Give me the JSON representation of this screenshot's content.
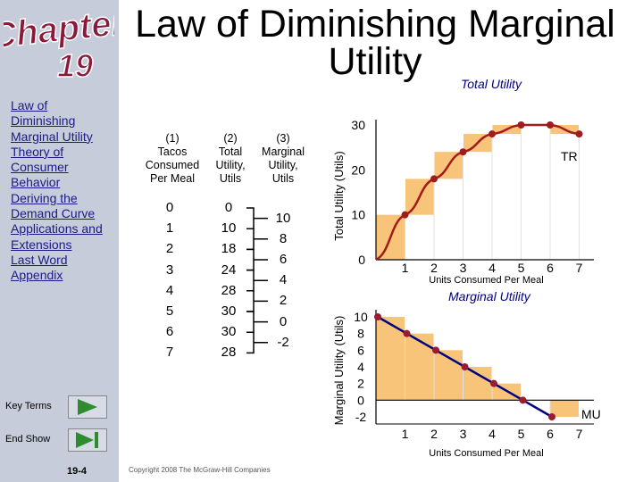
{
  "logo": {
    "word": "Chapter",
    "number": "19"
  },
  "sidebar": {
    "items": [
      {
        "label": "Law of Diminishing Marginal Utility"
      },
      {
        "label": "Theory of Consumer Behavior"
      },
      {
        "label": "Deriving the Demand Curve"
      },
      {
        "label": "Applications and Extensions"
      },
      {
        "label": "Last Word"
      },
      {
        "label": "Appendix"
      }
    ],
    "key_terms_label": "Key Terms",
    "end_show_label": "End Show",
    "page_number": "19-4"
  },
  "slide": {
    "title": "Law of Diminishing Marginal Utility",
    "copyright": "Copyright 2008 The McGraw-Hill Companies"
  },
  "table": {
    "col1_header": [
      "(1)",
      "Tacos",
      "Consumed",
      "Per Meal"
    ],
    "col2_header": [
      "(2)",
      "Total",
      "Utility,",
      "Utils"
    ],
    "col3_header": [
      "(3)",
      "Marginal",
      "Utility,",
      "Utils"
    ],
    "tacos": [
      "0",
      "1",
      "2",
      "3",
      "4",
      "5",
      "6",
      "7"
    ],
    "total_utility": [
      "0",
      "10",
      "18",
      "24",
      "28",
      "30",
      "30",
      "28"
    ],
    "marginal_utility": [
      "10",
      "8",
      "6",
      "4",
      "2",
      "0",
      "-2"
    ]
  },
  "chart_data": [
    {
      "type": "line",
      "title": "Total Utility",
      "ylabel": "Total Utility (Utils)",
      "xlabel": "Units Consumed Per Meal",
      "x": [
        0,
        1,
        2,
        3,
        4,
        5,
        6,
        7
      ],
      "x_ticks": [
        "1",
        "2",
        "3",
        "4",
        "5",
        "6",
        "7"
      ],
      "y_ticks": [
        "0",
        "10",
        "20",
        "30"
      ],
      "series": [
        {
          "name": "TR",
          "values": [
            0,
            10,
            18,
            24,
            28,
            30,
            30,
            28
          ]
        }
      ],
      "ylim": [
        0,
        30
      ],
      "curve_color": "#a01c1c",
      "bar_color": "#f7c47a"
    },
    {
      "type": "line",
      "title": "Marginal Utility",
      "ylabel": "Marginal Utility (Utils)",
      "xlabel": "Units Consumed Per Meal",
      "x": [
        1,
        2,
        3,
        4,
        5,
        6,
        7
      ],
      "x_ticks": [
        "1",
        "2",
        "3",
        "4",
        "5",
        "6",
        "7"
      ],
      "y_ticks": [
        "10",
        "8",
        "6",
        "4",
        "2",
        "0",
        "-2"
      ],
      "series": [
        {
          "name": "MU",
          "values": [
            10,
            8,
            6,
            4,
            2,
            0,
            -2
          ]
        }
      ],
      "ylim": [
        -2,
        10
      ],
      "curve_color": "#000080",
      "bar_color": "#f7c47a"
    }
  ]
}
